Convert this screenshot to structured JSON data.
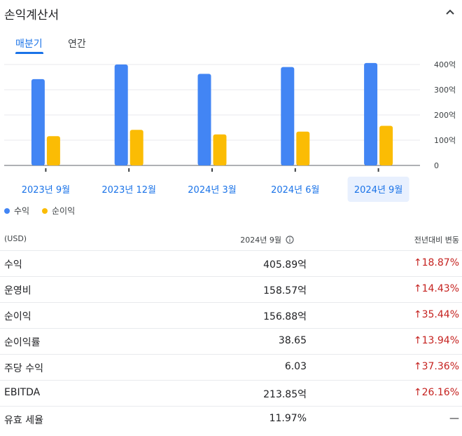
{
  "title": "손익계산서",
  "tabs": [
    {
      "label": "매분기",
      "active": true
    },
    {
      "label": "연간",
      "active": false
    }
  ],
  "chart_data": {
    "type": "bar",
    "categories": [
      "2023년 9월",
      "2023년 12월",
      "2024년 3월",
      "2024년 6월",
      "2024년 9월"
    ],
    "selected_category": "2024년 9월",
    "series": [
      {
        "name": "수익",
        "color": "#4285f4",
        "values": [
          342,
          400,
          363,
          390,
          405.89
        ]
      },
      {
        "name": "순이익",
        "color": "#fbbc04",
        "values": [
          116,
          141,
          123,
          134,
          156.88
        ]
      }
    ],
    "y_ticks": [
      "0",
      "100억",
      "200억",
      "300억",
      "400억"
    ],
    "ylim": [
      0,
      400
    ],
    "grid": true,
    "legend": "bottom-left"
  },
  "table": {
    "header": {
      "unit": "(USD)",
      "period": "2024년 9월",
      "change": "전년대비 변동"
    },
    "rows": [
      {
        "label": "수익",
        "value": "405.89억",
        "change": "18.87%",
        "trend": "up"
      },
      {
        "label": "운영비",
        "value": "158.57억",
        "change": "14.43%",
        "trend": "up"
      },
      {
        "label": "순이익",
        "value": "156.88억",
        "change": "35.44%",
        "trend": "up"
      },
      {
        "label": "순이익률",
        "value": "38.65",
        "change": "13.94%",
        "trend": "up"
      },
      {
        "label": "주당 수익",
        "value": "6.03",
        "change": "37.36%",
        "trend": "up"
      },
      {
        "label": "EBITDA",
        "value": "213.85억",
        "change": "26.16%",
        "trend": "up"
      },
      {
        "label": "유효 세율",
        "value": "11.97%",
        "change": "—",
        "trend": "none"
      }
    ]
  },
  "colors": {
    "accent": "#1a73e8",
    "negative_change": "#c5221f",
    "selected_bg": "#e8f0fe"
  }
}
